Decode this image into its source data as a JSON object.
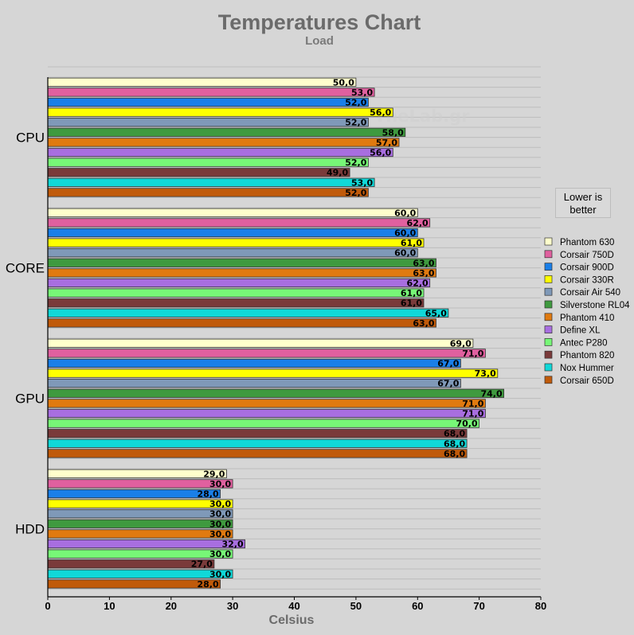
{
  "chart_data": {
    "type": "bar",
    "orientation": "horizontal",
    "title": "Temperatures Chart",
    "subtitle": "Load",
    "xlabel": "Celsius",
    "xlim": [
      0,
      80
    ],
    "xticks": [
      "0",
      "10",
      "20",
      "30",
      "40",
      "50",
      "60",
      "70",
      "80"
    ],
    "grid": true,
    "legend_position": "right",
    "note": "Lower is better",
    "watermark": "TheLab.gr",
    "categories": [
      "CPU",
      "CORE",
      "GPU",
      "HDD"
    ],
    "series": [
      {
        "name": "Phantom 630",
        "color": "#ffffcc",
        "values": [
          50.0,
          60.0,
          69.0,
          29.0
        ],
        "labels": [
          "50,0",
          "60,0",
          "69,0",
          "29,0"
        ]
      },
      {
        "name": "Corsair 750D",
        "color": "#e0609f",
        "values": [
          53.0,
          62.0,
          71.0,
          30.0
        ],
        "labels": [
          "53,0",
          "62,0",
          "71,0",
          "30,0"
        ]
      },
      {
        "name": "Corsair 900D",
        "color": "#1a7fe8",
        "values": [
          52.0,
          60.0,
          67.0,
          28.0
        ],
        "labels": [
          "52,0",
          "60,0",
          "67,0",
          "28,0"
        ]
      },
      {
        "name": "Corsair 330R",
        "color": "#ffff00",
        "values": [
          56.0,
          61.0,
          73.0,
          30.0
        ],
        "labels": [
          "56,0",
          "61,0",
          "73,0",
          "30,0"
        ]
      },
      {
        "name": "Corsair Air 540",
        "color": "#7f99b8",
        "values": [
          52.0,
          60.0,
          67.0,
          30.0
        ],
        "labels": [
          "52,0",
          "60,0",
          "67,0",
          "30,0"
        ]
      },
      {
        "name": "Silverstone RL04",
        "color": "#3f9a3f",
        "values": [
          58.0,
          63.0,
          74.0,
          30.0
        ],
        "labels": [
          "58,0",
          "63,0",
          "74,0",
          "30,0"
        ]
      },
      {
        "name": "Phantom 410",
        "color": "#e07a10",
        "values": [
          57.0,
          63.0,
          71.0,
          30.0
        ],
        "labels": [
          "57,0",
          "63,0",
          "71,0",
          "30,0"
        ]
      },
      {
        "name": "Define XL",
        "color": "#a86ee0",
        "values": [
          56.0,
          62.0,
          71.0,
          32.0
        ],
        "labels": [
          "56,0",
          "62,0",
          "71,0",
          "32,0"
        ]
      },
      {
        "name": "Antec P280",
        "color": "#77f777",
        "values": [
          52.0,
          61.0,
          70.0,
          30.0
        ],
        "labels": [
          "52,0",
          "61,0",
          "70,0",
          "30,0"
        ]
      },
      {
        "name": "Phantom 820",
        "color": "#7a3a3a",
        "values": [
          49.0,
          61.0,
          68.0,
          27.0
        ],
        "labels": [
          "49,0",
          "61,0",
          "68,0",
          "27,0"
        ]
      },
      {
        "name": "Nox Hummer",
        "color": "#10d8d8",
        "values": [
          53.0,
          65.0,
          68.0,
          30.0
        ],
        "labels": [
          "53,0",
          "65,0",
          "68,0",
          "30,0"
        ]
      },
      {
        "name": "Corsair 650D",
        "color": "#c05a0a",
        "values": [
          52.0,
          63.0,
          68.0,
          28.0
        ],
        "labels": [
          "52,0",
          "63,0",
          "68,0",
          "28,0"
        ]
      }
    ]
  }
}
